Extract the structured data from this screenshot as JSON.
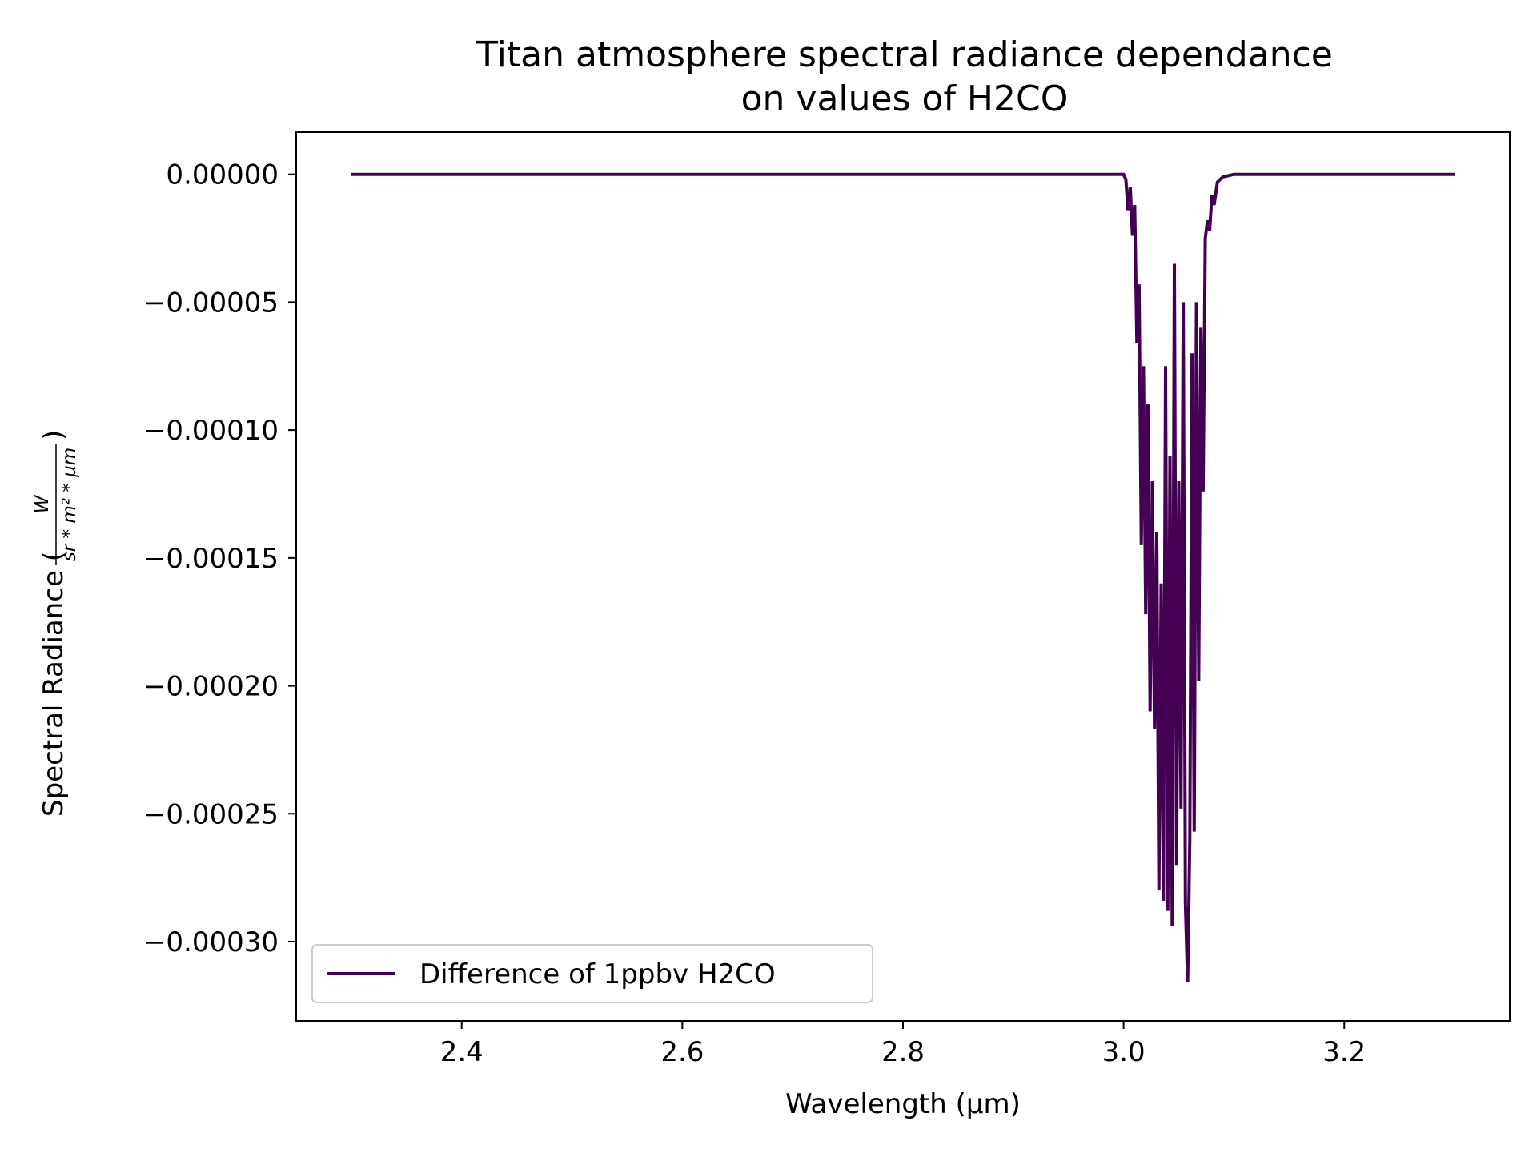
{
  "chart_data": {
    "type": "line",
    "title": "Titan atmosphere spectral radiance dependance",
    "title_line2": "on values of H2CO",
    "xlabel": "Wavelength (µm)",
    "ylabel": "Spectral Radiance (",
    "ylabel_unit_numerator": "W",
    "ylabel_unit_denominator": "sr * m² * µm",
    "ylabel_close": ")",
    "xlim": [
      2.25,
      3.35
    ],
    "ylim": [
      -0.000331,
      1.65e-05
    ],
    "x_ticks": [
      2.4,
      2.6,
      2.8,
      3.0,
      3.2
    ],
    "x_tick_labels": [
      "2.4",
      "2.6",
      "2.8",
      "3.0",
      "3.2"
    ],
    "y_ticks": [
      0.0,
      -5e-05,
      -0.0001,
      -0.00015,
      -0.0002,
      -0.00025,
      -0.0003
    ],
    "y_tick_labels": [
      "0.00000",
      "−0.00005",
      "−0.00010",
      "−0.00015",
      "−0.00020",
      "−0.00025",
      "−0.00030"
    ],
    "grid": false,
    "legend_position": "lower-left",
    "series": [
      {
        "name": "Difference of 1ppbv H2CO",
        "color": "#440154",
        "x": [
          2.3,
          2.5,
          2.7,
          2.9,
          3.0,
          3.002,
          3.004,
          3.006,
          3.008,
          3.01,
          3.012,
          3.014,
          3.016,
          3.018,
          3.02,
          3.022,
          3.024,
          3.026,
          3.028,
          3.03,
          3.032,
          3.034,
          3.036,
          3.038,
          3.04,
          3.042,
          3.044,
          3.046,
          3.048,
          3.05,
          3.052,
          3.054,
          3.056,
          3.058,
          3.06,
          3.062,
          3.064,
          3.066,
          3.068,
          3.07,
          3.072,
          3.074,
          3.076,
          3.078,
          3.08,
          3.082,
          3.085,
          3.09,
          3.1,
          3.2,
          3.3
        ],
        "y": [
          0.0,
          0.0,
          0.0,
          0.0,
          0.0,
          -2e-06,
          -1.4e-05,
          -5e-06,
          -2.4e-05,
          -1.2e-05,
          -6.6e-05,
          -4.3e-05,
          -0.000145,
          -7.5e-05,
          -0.000172,
          -9e-05,
          -0.00021,
          -0.00012,
          -0.000217,
          -0.00014,
          -0.00028,
          -0.00016,
          -0.000284,
          -7.5e-05,
          -0.000288,
          -0.00011,
          -0.000294,
          -3.5e-05,
          -0.00027,
          -0.00012,
          -0.000248,
          -5e-05,
          -0.000285,
          -0.000316,
          -0.00026,
          -7e-05,
          -0.000257,
          -5e-05,
          -0.000198,
          -6e-05,
          -0.000124,
          -2.5e-05,
          -1.8e-05,
          -2.2e-05,
          -8e-06,
          -1.2e-05,
          -3e-06,
          -1e-06,
          0.0,
          0.0,
          0.0
        ]
      }
    ]
  }
}
